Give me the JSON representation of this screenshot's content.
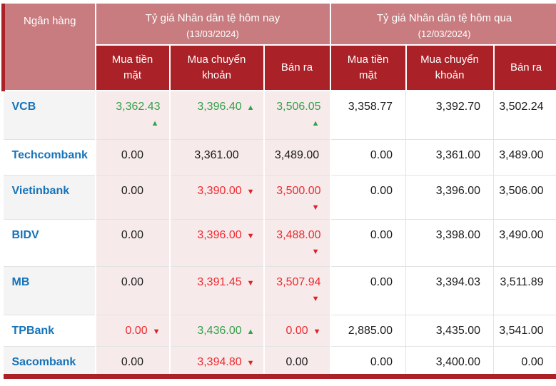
{
  "page": {
    "bank_column_header": "Ngân hàng",
    "column_groups": [
      {
        "title": "Tỷ giá Nhân dân tệ hôm nay",
        "date": "(13/03/2024)",
        "columns": [
          "Mua tiền mặt",
          "Mua chuyển khoản",
          "Bán ra"
        ]
      },
      {
        "title": "Tỷ giá Nhân dân tệ hôm qua",
        "date": "(12/03/2024)",
        "columns": [
          "Mua tiền mặt",
          "Mua chuyển khoản",
          "Bán ra"
        ]
      }
    ],
    "rows": [
      {
        "bank": "VCB",
        "today": [
          {
            "value": "3,362.43",
            "trend": "up",
            "arrow_below": true
          },
          {
            "value": "3,396.40",
            "trend": "up",
            "arrow_below": false
          },
          {
            "value": "3,506.05",
            "trend": "up",
            "arrow_below": true
          }
        ],
        "yesterday": [
          "3,358.77",
          "3,392.70",
          "3,502.24"
        ]
      },
      {
        "bank": "Techcombank",
        "today": [
          {
            "value": "0.00",
            "trend": null,
            "arrow_below": false
          },
          {
            "value": "3,361.00",
            "trend": null,
            "arrow_below": false
          },
          {
            "value": "3,489.00",
            "trend": null,
            "arrow_below": false
          }
        ],
        "yesterday": [
          "0.00",
          "3,361.00",
          "3,489.00"
        ]
      },
      {
        "bank": "Vietinbank",
        "today": [
          {
            "value": "0.00",
            "trend": null,
            "arrow_below": false
          },
          {
            "value": "3,390.00",
            "trend": "down",
            "arrow_below": false
          },
          {
            "value": "3,500.00",
            "trend": "down",
            "arrow_below": true
          }
        ],
        "yesterday": [
          "0.00",
          "3,396.00",
          "3,506.00"
        ]
      },
      {
        "bank": "BIDV",
        "today": [
          {
            "value": "0.00",
            "trend": null,
            "arrow_below": false
          },
          {
            "value": "3,396.00",
            "trend": "down",
            "arrow_below": false
          },
          {
            "value": "3,488.00",
            "trend": "down",
            "arrow_below": true
          }
        ],
        "yesterday": [
          "0.00",
          "3,398.00",
          "3,490.00"
        ]
      },
      {
        "bank": "MB",
        "today": [
          {
            "value": "0.00",
            "trend": null,
            "arrow_below": false
          },
          {
            "value": "3,391.45",
            "trend": "down",
            "arrow_below": false
          },
          {
            "value": "3,507.94",
            "trend": "down",
            "arrow_below": true
          }
        ],
        "yesterday": [
          "0.00",
          "3,394.03",
          "3,511.89"
        ]
      },
      {
        "bank": "TPBank",
        "today": [
          {
            "value": "0.00",
            "trend": "down",
            "arrow_below": false
          },
          {
            "value": "3,436.00",
            "trend": "up",
            "arrow_below": false
          },
          {
            "value": "0.00",
            "trend": "down",
            "arrow_below": false
          }
        ],
        "yesterday": [
          "2,885.00",
          "3,435.00",
          "3,541.00"
        ]
      },
      {
        "bank": "Sacombank",
        "today": [
          {
            "value": "0.00",
            "trend": null,
            "arrow_below": false
          },
          {
            "value": "3,394.80",
            "trend": "down",
            "arrow_below": false
          },
          {
            "value": "0.00",
            "trend": null,
            "arrow_below": false
          }
        ],
        "yesterday": [
          "0.00",
          "3,400.00",
          "0.00"
        ]
      }
    ],
    "icons": {
      "up_arrow": "▲",
      "down_arrow": "▼",
      "up_arrow_name": "trend-up-arrow-icon",
      "down_arrow_name": "trend-down-arrow-icon"
    },
    "colors": {
      "header_rose": "#c97c80",
      "header_red": "#aa2127",
      "pink_cell": "#f7eaea",
      "alt_row": "#f4f4f4",
      "bank_blue": "#1673b9",
      "up_green": "#33a04a",
      "down_red": "#ee2b31",
      "arrow_down_red": "#d8232a",
      "value_black": "#1c1c1c",
      "border_gray": "#e3e3e3"
    }
  },
  "chart_data": {
    "type": "table",
    "title": "Tỷ giá Nhân dân tệ hôm nay (13/03/2024) và hôm qua (12/03/2024)",
    "columns": [
      "Ngân hàng",
      "Mua tiền mặt (hôm nay)",
      "Mua chuyển khoản (hôm nay)",
      "Bán ra (hôm nay)",
      "Mua tiền mặt (hôm qua)",
      "Mua chuyển khoản (hôm qua)",
      "Bán ra (hôm qua)"
    ],
    "rows": [
      [
        "VCB",
        3362.43,
        3396.4,
        3506.05,
        3358.77,
        3392.7,
        3502.24
      ],
      [
        "Techcombank",
        0.0,
        3361.0,
        3489.0,
        0.0,
        3361.0,
        3489.0
      ],
      [
        "Vietinbank",
        0.0,
        3390.0,
        3500.0,
        0.0,
        3396.0,
        3506.0
      ],
      [
        "BIDV",
        0.0,
        3396.0,
        3488.0,
        0.0,
        3398.0,
        3490.0
      ],
      [
        "MB",
        0.0,
        3391.45,
        3507.94,
        0.0,
        3394.03,
        3511.89
      ],
      [
        "TPBank",
        0.0,
        3436.0,
        0.0,
        2885.0,
        3435.0,
        3541.0
      ],
      [
        "Sacombank",
        0.0,
        3394.8,
        0.0,
        0.0,
        3400.0,
        0.0
      ]
    ],
    "trends_today": [
      [
        "up",
        "up",
        "up"
      ],
      [
        null,
        null,
        null
      ],
      [
        null,
        "down",
        "down"
      ],
      [
        null,
        "down",
        "down"
      ],
      [
        null,
        "down",
        "down"
      ],
      [
        "down",
        "up",
        "down"
      ],
      [
        null,
        "down",
        null
      ]
    ]
  }
}
